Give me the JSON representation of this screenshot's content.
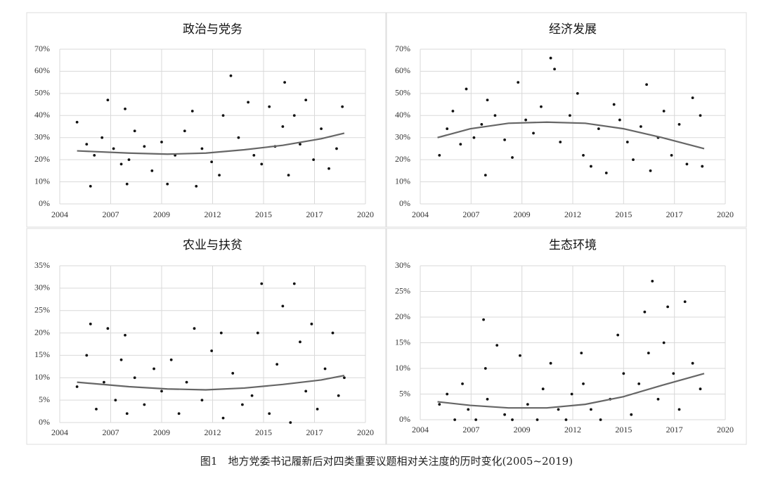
{
  "caption": "图1　地方党委书记履新后对四类重要议题相对关注度的历时变化(2005~2019)",
  "chart_data": [
    {
      "type": "scatter",
      "title": "政治与党务",
      "grid": true,
      "xlim": [
        2004.4,
        2020.3
      ],
      "xticks": [
        {
          "value": 2004.4,
          "label": "2004"
        },
        {
          "value": 2007.05,
          "label": "2007"
        },
        {
          "value": 2009.7,
          "label": "2009"
        },
        {
          "value": 2012.35,
          "label": "2012"
        },
        {
          "value": 2015.0,
          "label": "2015"
        },
        {
          "value": 2017.65,
          "label": "2017"
        },
        {
          "value": 2020.3,
          "label": "2020"
        }
      ],
      "ylim": [
        0,
        70
      ],
      "yticks": [
        {
          "value": 0,
          "label": "0%"
        },
        {
          "value": 10,
          "label": "10%"
        },
        {
          "value": 20,
          "label": "20%"
        },
        {
          "value": 30,
          "label": "30%"
        },
        {
          "value": 40,
          "label": "40%"
        },
        {
          "value": 50,
          "label": "50%"
        },
        {
          "value": 60,
          "label": "60%"
        },
        {
          "value": 70,
          "label": "70%"
        }
      ],
      "series": [
        {
          "type": "scatter",
          "color": "#111111",
          "x": [
            2005.3,
            2005.8,
            2006,
            2006.2,
            2006.6,
            2006.9,
            2007.2,
            2007.6,
            2007.8,
            2007.9,
            2008,
            2008.3,
            2008.8,
            2009.2,
            2009.7,
            2010,
            2010.4,
            2010.9,
            2011.3,
            2011.5,
            2011.8,
            2012.3,
            2012.7,
            2012.9,
            2013.3,
            2013.7,
            2014.2,
            2014.5,
            2014.9,
            2015.3,
            2015.6,
            2016,
            2016.1,
            2016.3,
            2016.6,
            2016.9,
            2017.2,
            2017.6,
            2018,
            2018.4,
            2018.8,
            2019.1
          ],
          "values": [
            37,
            27,
            8,
            22,
            30,
            47,
            25,
            18,
            43,
            9,
            20,
            33,
            26,
            15,
            28,
            9,
            22,
            33,
            42,
            8,
            25,
            19,
            13,
            40,
            58,
            30,
            46,
            22,
            18,
            44,
            26,
            35,
            55,
            13,
            40,
            27,
            47,
            20,
            34,
            16,
            25,
            44
          ]
        },
        {
          "type": "line",
          "color": "#666666",
          "x": [
            2005.3,
            2008,
            2010,
            2012,
            2014,
            2016,
            2018,
            2019.2
          ],
          "values": [
            24,
            23,
            22.5,
            23,
            24.5,
            26.5,
            29.5,
            32
          ]
        }
      ]
    },
    {
      "type": "scatter",
      "title": "经济发展",
      "grid": true,
      "xlim": [
        2004.4,
        2020.3
      ],
      "xticks": [
        {
          "value": 2004.4,
          "label": "2004"
        },
        {
          "value": 2007.05,
          "label": "2007"
        },
        {
          "value": 2009.7,
          "label": "2009"
        },
        {
          "value": 2012.35,
          "label": "2012"
        },
        {
          "value": 2015.0,
          "label": "2015"
        },
        {
          "value": 2017.65,
          "label": "2017"
        },
        {
          "value": 2020.3,
          "label": "2020"
        }
      ],
      "ylim": [
        0,
        70
      ],
      "yticks": [
        {
          "value": 0,
          "label": "0%"
        },
        {
          "value": 10,
          "label": "10%"
        },
        {
          "value": 20,
          "label": "20%"
        },
        {
          "value": 30,
          "label": "30%"
        },
        {
          "value": 40,
          "label": "40%"
        },
        {
          "value": 50,
          "label": "50%"
        },
        {
          "value": 60,
          "label": "60%"
        },
        {
          "value": 70,
          "label": "70%"
        }
      ],
      "series": [
        {
          "type": "scatter",
          "color": "#111111",
          "x": [
            2005.4,
            2005.8,
            2006.1,
            2006.5,
            2006.8,
            2007.2,
            2007.6,
            2007.8,
            2007.9,
            2008.3,
            2008.8,
            2009.2,
            2009.5,
            2009.9,
            2010.3,
            2010.7,
            2011.2,
            2011.4,
            2011.7,
            2012.2,
            2012.6,
            2012.9,
            2013.3,
            2013.7,
            2014.1,
            2014.5,
            2014.8,
            2015.2,
            2015.5,
            2015.9,
            2016.2,
            2016.4,
            2016.8,
            2017.1,
            2017.5,
            2017.9,
            2018.3,
            2018.6,
            2019,
            2019.1
          ],
          "values": [
            22,
            34,
            42,
            27,
            52,
            30,
            36,
            13,
            47,
            40,
            29,
            21,
            55,
            38,
            32,
            44,
            66,
            61,
            28,
            40,
            50,
            22,
            17,
            34,
            14,
            45,
            38,
            28,
            20,
            35,
            54,
            15,
            30,
            42,
            22,
            36,
            18,
            48,
            40,
            17
          ]
        },
        {
          "type": "line",
          "color": "#666666",
          "x": [
            2005.3,
            2007,
            2009,
            2011,
            2013,
            2015,
            2017,
            2019.2
          ],
          "values": [
            30,
            34,
            36.5,
            37,
            36.5,
            34,
            30,
            25
          ]
        }
      ]
    },
    {
      "type": "scatter",
      "title": "农业与扶贫",
      "grid": true,
      "xlim": [
        2004.4,
        2020.3
      ],
      "xticks": [
        {
          "value": 2004.4,
          "label": "2004"
        },
        {
          "value": 2007.05,
          "label": "2007"
        },
        {
          "value": 2009.7,
          "label": "2009"
        },
        {
          "value": 2012.35,
          "label": "2012"
        },
        {
          "value": 2015.0,
          "label": "2015"
        },
        {
          "value": 2017.65,
          "label": "2017"
        },
        {
          "value": 2020.3,
          "label": "2020"
        }
      ],
      "ylim": [
        0,
        35
      ],
      "yticks": [
        {
          "value": 0,
          "label": "0%"
        },
        {
          "value": 5,
          "label": "5%"
        },
        {
          "value": 10,
          "label": "10%"
        },
        {
          "value": 15,
          "label": "15%"
        },
        {
          "value": 20,
          "label": "20%"
        },
        {
          "value": 25,
          "label": "25%"
        },
        {
          "value": 30,
          "label": "30%"
        },
        {
          "value": 35,
          "label": "35%"
        }
      ],
      "series": [
        {
          "type": "scatter",
          "color": "#111111",
          "x": [
            2005.3,
            2005.8,
            2006,
            2006.3,
            2006.7,
            2006.9,
            2007.3,
            2007.6,
            2007.8,
            2007.9,
            2008.3,
            2008.8,
            2009.3,
            2009.7,
            2010.2,
            2010.6,
            2011,
            2011.4,
            2011.8,
            2012.3,
            2012.8,
            2012.9,
            2013.4,
            2013.9,
            2014.4,
            2014.7,
            2014.9,
            2015.3,
            2015.7,
            2016,
            2016.4,
            2016.6,
            2016.9,
            2017.2,
            2017.5,
            2017.8,
            2018.2,
            2018.6,
            2018.9,
            2019.2
          ],
          "values": [
            8,
            15,
            22,
            3,
            9,
            21,
            5,
            14,
            19.5,
            2,
            10,
            4,
            12,
            7,
            14,
            2,
            9,
            21,
            5,
            16,
            20,
            1,
            11,
            4,
            6,
            20,
            31,
            2,
            13,
            26,
            0,
            31,
            18,
            7,
            22,
            3,
            12,
            20,
            6,
            10
          ]
        },
        {
          "type": "line",
          "color": "#666666",
          "x": [
            2005.3,
            2008,
            2010,
            2012,
            2014,
            2016,
            2018,
            2019.2
          ],
          "values": [
            9,
            8,
            7.5,
            7.3,
            7.7,
            8.5,
            9.5,
            10.5
          ]
        }
      ]
    },
    {
      "type": "scatter",
      "title": "生态环境",
      "grid": true,
      "xlim": [
        2004.4,
        2020.3
      ],
      "xticks": [
        {
          "value": 2004.4,
          "label": "2004"
        },
        {
          "value": 2007.05,
          "label": "2007"
        },
        {
          "value": 2009.7,
          "label": "2009"
        },
        {
          "value": 2012.35,
          "label": "2012"
        },
        {
          "value": 2015.0,
          "label": "2015"
        },
        {
          "value": 2017.65,
          "label": "2017"
        },
        {
          "value": 2020.3,
          "label": "2020"
        }
      ],
      "ylim": [
        0,
        30
      ],
      "yticks": [
        {
          "value": 0,
          "label": "0%"
        },
        {
          "value": 5,
          "label": "5%"
        },
        {
          "value": 10,
          "label": "10%"
        },
        {
          "value": 15,
          "label": "15%"
        },
        {
          "value": 20,
          "label": "20%"
        },
        {
          "value": 25,
          "label": "25%"
        },
        {
          "value": 30,
          "label": "30%"
        }
      ],
      "series": [
        {
          "type": "scatter",
          "color": "#111111",
          "x": [
            2005.4,
            2005.8,
            2006.2,
            2006.6,
            2006.9,
            2007.3,
            2007.7,
            2007.8,
            2007.9,
            2008.4,
            2008.8,
            2009.2,
            2009.6,
            2010,
            2010.5,
            2010.8,
            2011.2,
            2011.6,
            2012,
            2012.3,
            2012.8,
            2012.9,
            2013.3,
            2013.8,
            2014.3,
            2014.7,
            2015,
            2015.4,
            2015.8,
            2016.1,
            2016.3,
            2016.5,
            2016.8,
            2017.1,
            2017.3,
            2017.6,
            2017.9,
            2018.2,
            2018.6,
            2019
          ],
          "values": [
            3,
            5,
            0,
            7,
            2,
            0,
            19.5,
            10,
            4,
            14.5,
            1,
            0,
            12.5,
            3,
            0,
            6,
            11,
            2,
            0,
            5,
            13,
            7,
            2,
            0,
            4,
            16.5,
            9,
            1,
            7,
            21,
            13,
            27,
            4,
            15,
            22,
            9,
            2,
            23,
            11,
            6
          ]
        },
        {
          "type": "line",
          "color": "#666666",
          "x": [
            2005.3,
            2007,
            2009,
            2011,
            2013,
            2015,
            2017,
            2019.2
          ],
          "values": [
            3.5,
            2.8,
            2.3,
            2.3,
            3,
            4.5,
            6.7,
            9
          ]
        }
      ]
    }
  ]
}
